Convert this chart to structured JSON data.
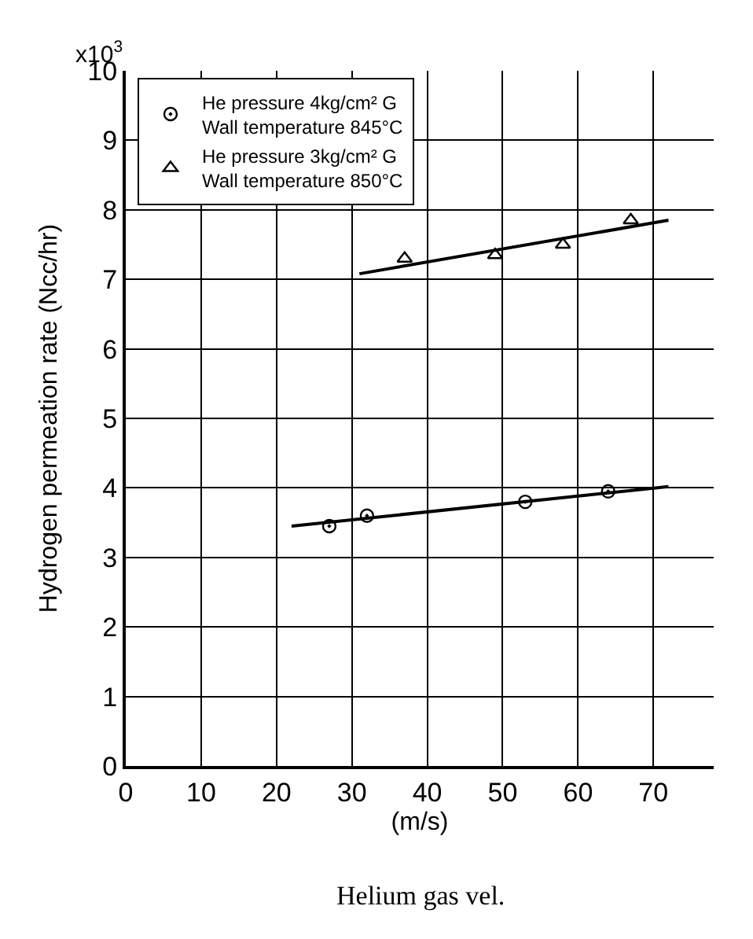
{
  "chart_data": {
    "type": "scatter",
    "xlabel": "(m/s)",
    "ylabel": "Hydrogen permeation rate (Ncc/hr)",
    "xlim": [
      0,
      78
    ],
    "xticks": [
      0,
      10,
      20,
      30,
      40,
      50,
      60,
      70
    ],
    "ylim": [
      0,
      10
    ],
    "yticks": [
      0,
      1,
      2,
      3,
      4,
      5,
      6,
      7,
      8,
      9,
      10
    ],
    "grid": true,
    "legend": "top left",
    "series": [
      {
        "name": "He pressure 4kg/cm² G\nWall temperature 845°C",
        "marker": "circle",
        "color": "#000000",
        "x": [
          27,
          32,
          53,
          64
        ],
        "values": [
          3.45,
          3.6,
          3.8,
          3.95
        ]
      },
      {
        "type": "line",
        "marker": "none",
        "color": "#000000",
        "x": [
          22,
          72
        ],
        "values": [
          3.45,
          4.02
        ]
      },
      {
        "name": "He pressure 3kg/cm² G\nWall temperature 850°C",
        "marker": "triangle",
        "color": "#000000",
        "x": [
          37,
          49,
          58,
          67
        ],
        "values": [
          7.3,
          7.35,
          7.5,
          7.85
        ]
      },
      {
        "type": "line",
        "marker": "none",
        "color": "#000000",
        "x": [
          31,
          72
        ],
        "values": [
          7.08,
          7.85
        ]
      }
    ],
    "annotations": [
      "x10$^{3}$",
      "Helium gas vel."
    ]
  }
}
